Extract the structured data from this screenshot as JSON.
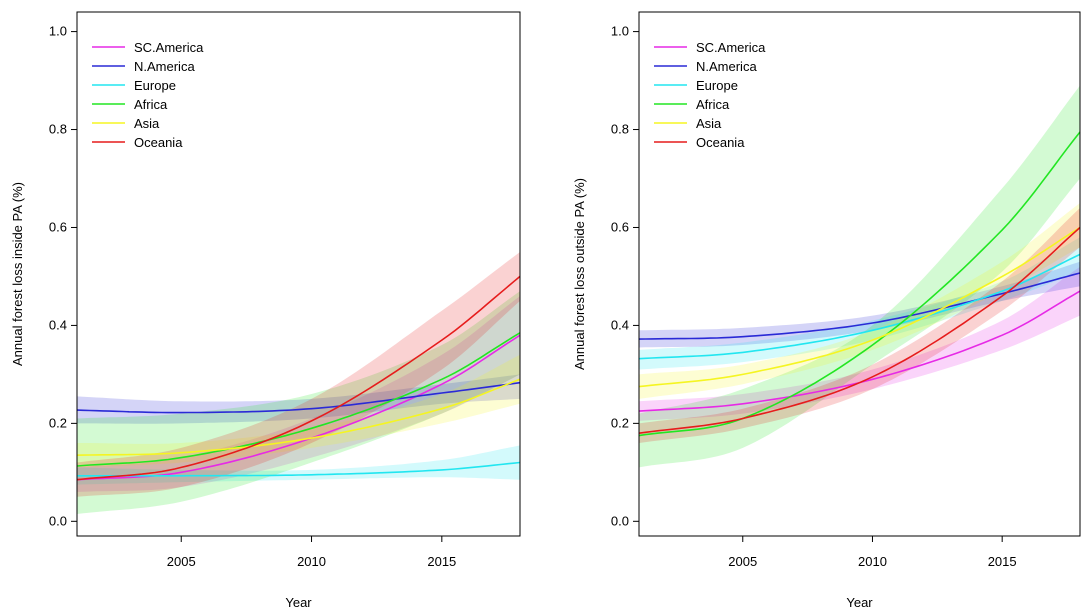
{
  "chart_data": [
    {
      "type": "line",
      "title": "",
      "xlabel": "Year",
      "ylabel": "Annual forest loss inside PA (%)",
      "xlim": [
        2001,
        2018
      ],
      "ylim": [
        0,
        1.0
      ],
      "xticks": [
        "2005",
        "2010",
        "2015"
      ],
      "yticks": [
        "0.0",
        "0.2",
        "0.4",
        "0.6",
        "0.8",
        "1.0"
      ],
      "legend_position": "top-left",
      "series": [
        {
          "name": "SC.America",
          "color": "#e62ae6",
          "x": [
            2001,
            2005,
            2010,
            2015,
            2018
          ],
          "y": [
            0.085,
            0.1,
            0.17,
            0.28,
            0.38
          ],
          "lower": [
            0.06,
            0.07,
            0.13,
            0.22,
            0.3
          ],
          "upper": [
            0.11,
            0.13,
            0.21,
            0.34,
            0.46
          ]
        },
        {
          "name": "N.America",
          "color": "#2a2ad6",
          "x": [
            2001,
            2005,
            2010,
            2015,
            2018
          ],
          "y": [
            0.227,
            0.222,
            0.23,
            0.262,
            0.283
          ],
          "lower": [
            0.2,
            0.2,
            0.21,
            0.24,
            0.25
          ],
          "upper": [
            0.255,
            0.245,
            0.25,
            0.28,
            0.3
          ]
        },
        {
          "name": "Europe",
          "color": "#22e6f0",
          "x": [
            2001,
            2005,
            2010,
            2015,
            2018
          ],
          "y": [
            0.093,
            0.093,
            0.095,
            0.105,
            0.12
          ],
          "lower": [
            0.075,
            0.08,
            0.085,
            0.09,
            0.085
          ],
          "upper": [
            0.11,
            0.105,
            0.105,
            0.125,
            0.155
          ]
        },
        {
          "name": "Africa",
          "color": "#22e622",
          "x": [
            2001,
            2005,
            2010,
            2015,
            2018
          ],
          "y": [
            0.113,
            0.13,
            0.19,
            0.29,
            0.385
          ],
          "lower": [
            0.015,
            0.04,
            0.12,
            0.22,
            0.3
          ],
          "upper": [
            0.21,
            0.22,
            0.26,
            0.36,
            0.47
          ]
        },
        {
          "name": "Asia",
          "color": "#f5f522",
          "x": [
            2001,
            2005,
            2010,
            2015,
            2018
          ],
          "y": [
            0.135,
            0.14,
            0.17,
            0.23,
            0.29
          ],
          "lower": [
            0.11,
            0.12,
            0.15,
            0.2,
            0.24
          ],
          "upper": [
            0.16,
            0.16,
            0.19,
            0.26,
            0.34
          ]
        },
        {
          "name": "Oceania",
          "color": "#e61c1c",
          "x": [
            2001,
            2005,
            2010,
            2015,
            2018
          ],
          "y": [
            0.085,
            0.11,
            0.205,
            0.37,
            0.5
          ],
          "lower": [
            0.05,
            0.07,
            0.16,
            0.31,
            0.45
          ],
          "upper": [
            0.12,
            0.15,
            0.25,
            0.43,
            0.55
          ]
        }
      ]
    },
    {
      "type": "line",
      "title": "",
      "xlabel": "Year",
      "ylabel": "Annual forest loss outside PA (%)",
      "xlim": [
        2001,
        2018
      ],
      "ylim": [
        0,
        1.0
      ],
      "xticks": [
        "2005",
        "2010",
        "2015"
      ],
      "yticks": [
        "0.0",
        "0.2",
        "0.4",
        "0.6",
        "0.8",
        "1.0"
      ],
      "legend_position": "top-left",
      "series": [
        {
          "name": "SC.America",
          "color": "#e62ae6",
          "x": [
            2001,
            2005,
            2010,
            2015,
            2018
          ],
          "y": [
            0.225,
            0.24,
            0.29,
            0.38,
            0.47
          ],
          "lower": [
            0.205,
            0.22,
            0.27,
            0.35,
            0.42
          ],
          "upper": [
            0.245,
            0.26,
            0.31,
            0.41,
            0.52
          ]
        },
        {
          "name": "N.America",
          "color": "#2a2ad6",
          "x": [
            2001,
            2005,
            2010,
            2015,
            2018
          ],
          "y": [
            0.372,
            0.377,
            0.405,
            0.465,
            0.507
          ],
          "lower": [
            0.355,
            0.36,
            0.39,
            0.45,
            0.48
          ],
          "upper": [
            0.39,
            0.395,
            0.42,
            0.48,
            0.53
          ]
        },
        {
          "name": "Europe",
          "color": "#22e6f0",
          "x": [
            2001,
            2005,
            2010,
            2015,
            2018
          ],
          "y": [
            0.332,
            0.345,
            0.39,
            0.47,
            0.545
          ],
          "lower": [
            0.31,
            0.325,
            0.37,
            0.45,
            0.51
          ],
          "upper": [
            0.35,
            0.365,
            0.41,
            0.49,
            0.58
          ]
        },
        {
          "name": "Africa",
          "color": "#22e622",
          "x": [
            2001,
            2005,
            2010,
            2015,
            2018
          ],
          "y": [
            0.175,
            0.21,
            0.36,
            0.595,
            0.795
          ],
          "lower": [
            0.11,
            0.15,
            0.32,
            0.51,
            0.7
          ],
          "upper": [
            0.22,
            0.27,
            0.4,
            0.68,
            0.89
          ]
        },
        {
          "name": "Asia",
          "color": "#f5f522",
          "x": [
            2001,
            2005,
            2010,
            2015,
            2018
          ],
          "y": [
            0.275,
            0.3,
            0.37,
            0.5,
            0.6
          ],
          "lower": [
            0.25,
            0.28,
            0.35,
            0.47,
            0.56
          ],
          "upper": [
            0.3,
            0.32,
            0.39,
            0.53,
            0.65
          ]
        },
        {
          "name": "Oceania",
          "color": "#e61c1c",
          "x": [
            2001,
            2005,
            2010,
            2015,
            2018
          ],
          "y": [
            0.18,
            0.21,
            0.295,
            0.46,
            0.6
          ],
          "lower": [
            0.16,
            0.19,
            0.27,
            0.43,
            0.56
          ],
          "upper": [
            0.2,
            0.23,
            0.32,
            0.49,
            0.64
          ]
        }
      ]
    }
  ]
}
